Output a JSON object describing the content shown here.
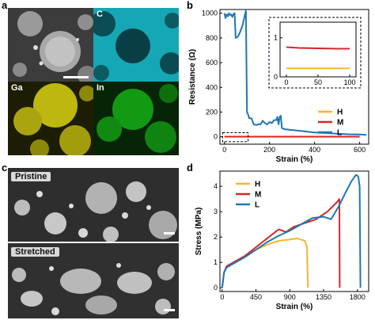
{
  "figure": {
    "panels": {
      "a": {
        "letter": "a",
        "channels": [
          {
            "label": "",
            "color": "#7a7a7a"
          },
          {
            "label": "C",
            "color": "#1fb8c4"
          },
          {
            "label": "Ga",
            "color": "#c9c410"
          },
          {
            "label": "In",
            "color": "#18a818"
          }
        ]
      },
      "b": {
        "letter": "b"
      },
      "c": {
        "letter": "c",
        "images": [
          {
            "label": "Pristine"
          },
          {
            "label": "Stretched"
          }
        ]
      },
      "d": {
        "letter": "d"
      }
    }
  },
  "chart_data": [
    {
      "id": "b",
      "type": "line",
      "xlabel": "Strain (%)",
      "ylabel": "Resistance (Ω)",
      "xlim": [
        -20,
        640
      ],
      "ylim": [
        -60,
        1030
      ],
      "xticks": [
        0,
        200,
        400,
        600
      ],
      "yticks": [
        0,
        200,
        400,
        600,
        800,
        1000
      ],
      "legend": "lower-right",
      "series": [
        {
          "name": "H",
          "color": "#f5b82e",
          "points": [
            [
              0,
              0.2
            ],
            [
              100,
              0.2
            ],
            [
              300,
              0.2
            ],
            [
              600,
              0.2
            ]
          ]
        },
        {
          "name": "M",
          "color": "#d62728",
          "points": [
            [
              0,
              0.8
            ],
            [
              100,
              0.75
            ],
            [
              300,
              0.7
            ],
            [
              600,
              0.7
            ]
          ]
        },
        {
          "name": "L",
          "color": "#1f77b4",
          "points": [
            [
              0,
              1000
            ],
            [
              5,
              960
            ],
            [
              10,
              990
            ],
            [
              15,
              975
            ],
            [
              20,
              1000
            ],
            [
              25,
              985
            ],
            [
              30,
              990
            ],
            [
              35,
              970
            ],
            [
              40,
              995
            ],
            [
              45,
              1000
            ],
            [
              50,
              800
            ],
            [
              60,
              810
            ],
            [
              70,
              850
            ],
            [
              80,
              900
            ],
            [
              90,
              980
            ],
            [
              95,
              1020
            ],
            [
              100,
              200
            ],
            [
              105,
              180
            ],
            [
              110,
              150
            ],
            [
              120,
              150
            ],
            [
              130,
              100
            ],
            [
              140,
              95
            ],
            [
              150,
              100
            ],
            [
              160,
              100
            ],
            [
              170,
              130
            ],
            [
              180,
              110
            ],
            [
              190,
              100
            ],
            [
              200,
              120
            ],
            [
              210,
              110
            ],
            [
              220,
              135
            ],
            [
              230,
              135
            ],
            [
              235,
              160
            ],
            [
              240,
              100
            ],
            [
              245,
              160
            ],
            [
              250,
              170
            ],
            [
              255,
              70
            ],
            [
              270,
              60
            ],
            [
              300,
              55
            ],
            [
              350,
              45
            ],
            [
              400,
              35
            ],
            [
              450,
              30
            ],
            [
              500,
              25
            ],
            [
              550,
              20
            ],
            [
              600,
              18
            ],
            [
              630,
              15
            ]
          ]
        }
      ],
      "inset": {
        "xlim": [
          -10,
          110
        ],
        "ylim": [
          0,
          1.4
        ],
        "xticks": [
          0,
          50,
          100
        ],
        "yticks": [
          0,
          1
        ],
        "series": [
          {
            "name": "H",
            "color": "#f5b82e",
            "points": [
              [
                0,
                0.22
              ],
              [
                50,
                0.22
              ],
              [
                100,
                0.22
              ]
            ]
          },
          {
            "name": "M",
            "color": "#d62728",
            "points": [
              [
                0,
                0.76
              ],
              [
                20,
                0.74
              ],
              [
                50,
                0.73
              ],
              [
                80,
                0.72
              ],
              [
                100,
                0.72
              ]
            ]
          }
        ]
      }
    },
    {
      "id": "d",
      "type": "line",
      "xlabel": "Strain (%)",
      "ylabel": "Stress (MPa)",
      "xlim": [
        -30,
        1950
      ],
      "ylim": [
        -0.15,
        4.6
      ],
      "xticks": [
        0,
        450,
        900,
        1350,
        1800
      ],
      "yticks": [
        0,
        1,
        2,
        3,
        4
      ],
      "legend": "upper-left",
      "series": [
        {
          "name": "H",
          "color": "#f5b82e",
          "points": [
            [
              0,
              0
            ],
            [
              25,
              0.6
            ],
            [
              60,
              0.85
            ],
            [
              150,
              1.0
            ],
            [
              300,
              1.25
            ],
            [
              450,
              1.5
            ],
            [
              600,
              1.7
            ],
            [
              750,
              1.85
            ],
            [
              900,
              1.9
            ],
            [
              1000,
              1.95
            ],
            [
              1050,
              1.9
            ],
            [
              1100,
              1.85
            ],
            [
              1130,
              1.6
            ],
            [
              1140,
              0
            ]
          ]
        },
        {
          "name": "M",
          "color": "#d62728",
          "points": [
            [
              0,
              0
            ],
            [
              25,
              0.6
            ],
            [
              60,
              0.85
            ],
            [
              150,
              1.0
            ],
            [
              300,
              1.25
            ],
            [
              450,
              1.6
            ],
            [
              600,
              1.95
            ],
            [
              750,
              2.3
            ],
            [
              850,
              2.2
            ],
            [
              950,
              2.4
            ],
            [
              1100,
              2.55
            ],
            [
              1250,
              2.7
            ],
            [
              1400,
              3.0
            ],
            [
              1520,
              3.35
            ],
            [
              1560,
              3.5
            ],
            [
              1565,
              0
            ]
          ]
        },
        {
          "name": "L",
          "color": "#1f77b4",
          "points": [
            [
              0,
              0
            ],
            [
              25,
              0.6
            ],
            [
              60,
              0.8
            ],
            [
              150,
              0.95
            ],
            [
              300,
              1.2
            ],
            [
              450,
              1.5
            ],
            [
              600,
              1.8
            ],
            [
              750,
              2.05
            ],
            [
              900,
              2.25
            ],
            [
              1050,
              2.5
            ],
            [
              1200,
              2.75
            ],
            [
              1350,
              2.8
            ],
            [
              1450,
              2.7
            ],
            [
              1550,
              3.2
            ],
            [
              1650,
              3.8
            ],
            [
              1720,
              4.2
            ],
            [
              1780,
              4.45
            ],
            [
              1810,
              4.4
            ],
            [
              1830,
              4.0
            ],
            [
              1840,
              0
            ]
          ]
        }
      ]
    }
  ]
}
